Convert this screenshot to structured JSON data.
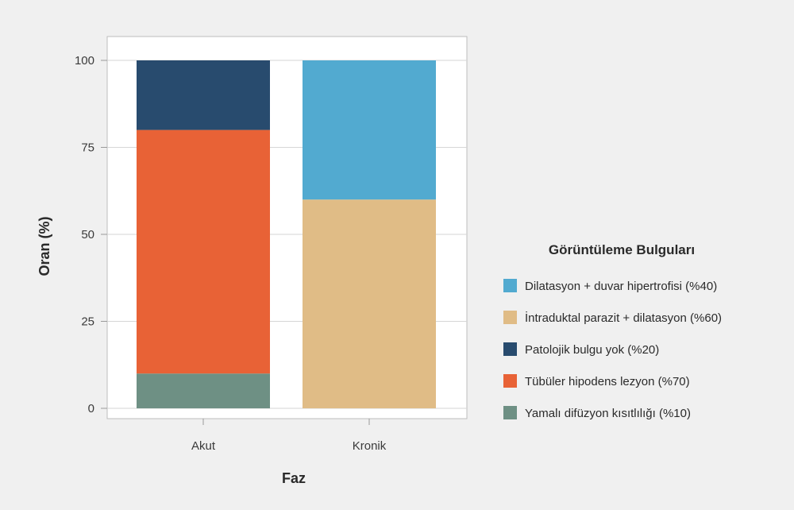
{
  "chart_data": {
    "type": "bar",
    "stacked": true,
    "categories": [
      "Akut",
      "Kronik"
    ],
    "xlabel": "Faz",
    "ylabel": "Oran (%)",
    "ylim": [
      0,
      100
    ],
    "yticks": [
      0,
      25,
      50,
      75,
      100
    ],
    "grid": true,
    "legend": {
      "title": "Görüntüleme Bulguları",
      "position": "right"
    },
    "series": [
      {
        "name": "Yamalı difüzyon kısıtlılığı (%10)",
        "values": [
          10,
          0
        ],
        "color": "#6e9084"
      },
      {
        "name": "Tübüler hipodens lezyon (%70)",
        "values": [
          70,
          0
        ],
        "color": "#e86236"
      },
      {
        "name": "Patolojik bulgu yok (%20)",
        "values": [
          20,
          0
        ],
        "color": "#284b6e"
      },
      {
        "name": "İntraduktal parazit + dilatasyon (%60)",
        "values": [
          0,
          60
        ],
        "color": "#e0bc86"
      },
      {
        "name": "Dilatasyon + duvar hipertrofisi (%40)",
        "values": [
          0,
          40
        ],
        "color": "#52aad0"
      }
    ],
    "legend_order": [
      4,
      3,
      2,
      1,
      0
    ]
  }
}
